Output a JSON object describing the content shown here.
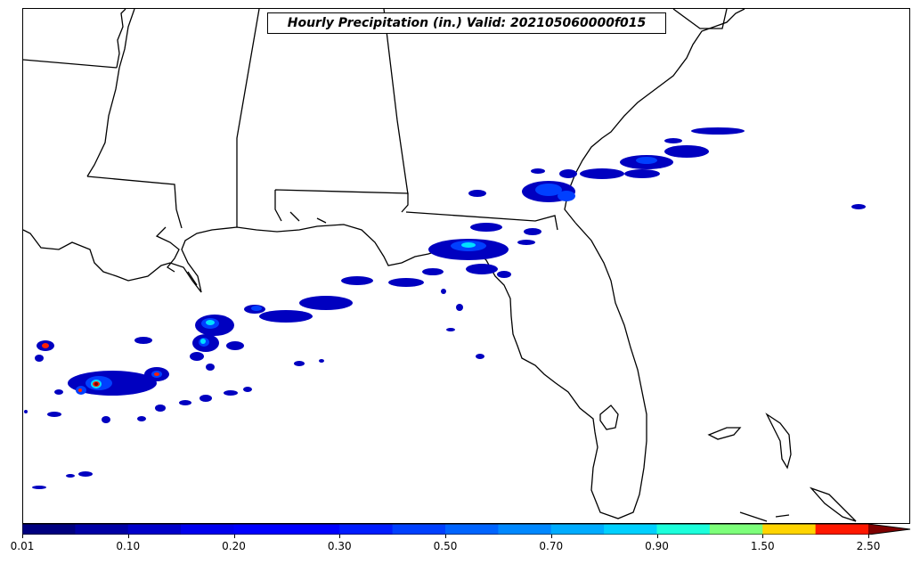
{
  "title": "Hourly Precipitation (in.) Valid: 202105060000f015",
  "colorbar": {
    "tick_labels": [
      "0.01",
      "0.10",
      "0.20",
      "0.30",
      "0.50",
      "0.70",
      "0.90",
      "1.50",
      "2.50"
    ],
    "colors": [
      "#00007f",
      "#0000a5",
      "#0000c9",
      "#0000ee",
      "#0000ff",
      "#0000ff",
      "#001cff",
      "#0040ff",
      "#0064ff",
      "#0088ff",
      "#00acff",
      "#00d0ff",
      "#1cffdb",
      "#7dff7a",
      "#ffd400",
      "#ff1800"
    ],
    "extend_color": "#7f0000"
  },
  "legend_colors": {
    "light": "#0000a0",
    "medium": "#0040ff",
    "moderate": "#00c8ff",
    "heavy": "#80ff80",
    "very_heavy": "#ff2000",
    "extreme": "#800000"
  }
}
